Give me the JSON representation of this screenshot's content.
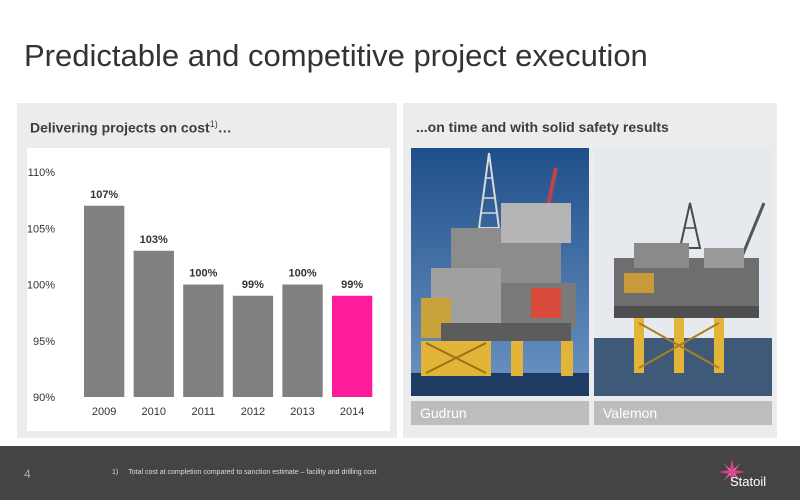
{
  "slide": {
    "title": "Predictable and competitive project execution",
    "page_number": "4"
  },
  "left_panel": {
    "heading": "Delivering projects on cost",
    "heading_superscript": "1)",
    "heading_suffix": "…"
  },
  "right_panel": {
    "heading": "...on time and with solid safety results",
    "photos": [
      {
        "caption": "Gudrun",
        "image_icon": "offshore-platform-image"
      },
      {
        "caption": "Valemon",
        "image_icon": "offshore-platform-image"
      }
    ]
  },
  "footer": {
    "footnote_marker": "1)",
    "footnote_text": "Total cost at completion compared to sanction estimate – facility and drilling cost",
    "logo_text": "Statoil",
    "logo_icon": "statoil-star-logo"
  },
  "chart_data": {
    "type": "bar",
    "categories": [
      "2009",
      "2010",
      "2011",
      "2012",
      "2013",
      "2014"
    ],
    "values": [
      107,
      103,
      100,
      99,
      100,
      99
    ],
    "data_labels": [
      "107%",
      "103%",
      "100%",
      "99%",
      "100%",
      "99%"
    ],
    "ylim": [
      90,
      110
    ],
    "y_ticks": [
      90,
      95,
      100,
      105,
      110
    ],
    "y_tick_labels": [
      "90%",
      "95%",
      "100%",
      "105%",
      "110%"
    ],
    "bar_colors": [
      "#808080",
      "#808080",
      "#808080",
      "#808080",
      "#808080",
      "#ff1c9b"
    ],
    "grid": false,
    "title": "",
    "xlabel": "",
    "ylabel": ""
  }
}
